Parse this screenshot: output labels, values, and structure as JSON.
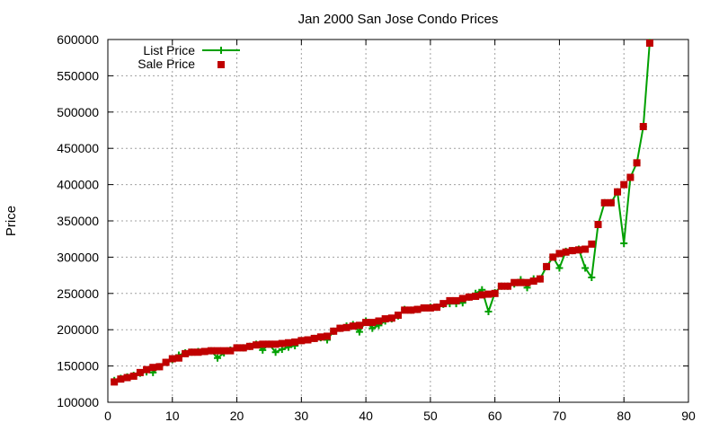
{
  "chart_data": {
    "type": "line",
    "title": "Jan 2000 San Jose Condo Prices",
    "xlabel": "",
    "ylabel": "Price",
    "xlim": [
      0,
      90
    ],
    "ylim": [
      100000,
      600000
    ],
    "xticks": [
      0,
      10,
      20,
      30,
      40,
      50,
      60,
      70,
      80,
      90
    ],
    "yticks": [
      100000,
      150000,
      200000,
      250000,
      300000,
      350000,
      400000,
      450000,
      500000,
      550000,
      600000
    ],
    "grid": true,
    "legend_position": "top-left",
    "series": [
      {
        "name": "List Price",
        "style": "line+plus",
        "color": "#00a000",
        "x": [
          1,
          2,
          3,
          4,
          5,
          6,
          7,
          8,
          9,
          10,
          11,
          12,
          13,
          14,
          15,
          16,
          17,
          18,
          19,
          20,
          21,
          22,
          23,
          24,
          25,
          26,
          27,
          28,
          29,
          30,
          31,
          32,
          33,
          34,
          35,
          36,
          37,
          38,
          39,
          40,
          41,
          42,
          43,
          44,
          45,
          46,
          47,
          48,
          49,
          50,
          51,
          52,
          53,
          54,
          55,
          56,
          57,
          58,
          59,
          60,
          61,
          62,
          63,
          64,
          65,
          66,
          67,
          68,
          69,
          70,
          71,
          72,
          73,
          74,
          75,
          76,
          77,
          78,
          79,
          80,
          81,
          82,
          83,
          84
        ],
        "values": [
          130000,
          133000,
          135000,
          137000,
          140000,
          142000,
          141000,
          149000,
          155000,
          159000,
          165000,
          168000,
          169000,
          170000,
          170000,
          171000,
          161000,
          168000,
          172000,
          175000,
          175000,
          177000,
          180000,
          172000,
          180000,
          169000,
          173000,
          176000,
          178000,
          185000,
          186000,
          188000,
          189000,
          186000,
          198000,
          202000,
          205000,
          207000,
          197000,
          212000,
          202000,
          206000,
          212000,
          215000,
          219000,
          228000,
          227000,
          228000,
          230000,
          231000,
          231000,
          235000,
          236000,
          236000,
          237000,
          245000,
          250000,
          255000,
          225000,
          251000,
          260000,
          260000,
          263000,
          269000,
          258000,
          270000,
          270000,
          287000,
          300000,
          285000,
          308000,
          309000,
          311000,
          285000,
          272000,
          345000,
          375000,
          375000,
          390000,
          319000,
          410000,
          430000,
          480000,
          596000
        ]
      },
      {
        "name": "Sale Price",
        "style": "squares",
        "color": "#c00000",
        "x": [
          1,
          2,
          3,
          4,
          5,
          6,
          7,
          8,
          9,
          10,
          11,
          12,
          13,
          14,
          15,
          16,
          17,
          18,
          19,
          20,
          21,
          22,
          23,
          24,
          25,
          26,
          27,
          28,
          29,
          30,
          31,
          32,
          33,
          34,
          35,
          36,
          37,
          38,
          39,
          40,
          41,
          42,
          43,
          44,
          45,
          46,
          47,
          48,
          49,
          50,
          51,
          52,
          53,
          54,
          55,
          56,
          57,
          58,
          59,
          60,
          61,
          62,
          63,
          64,
          65,
          66,
          67,
          68,
          69,
          70,
          71,
          72,
          73,
          74,
          75,
          76,
          77,
          78,
          79,
          80,
          81,
          82,
          83,
          84
        ],
        "values": [
          128000,
          132000,
          134000,
          136000,
          141000,
          145000,
          148000,
          149000,
          155000,
          160000,
          161000,
          167000,
          169000,
          169000,
          170000,
          171000,
          171000,
          171000,
          171000,
          175000,
          175000,
          177000,
          179000,
          180000,
          180000,
          180000,
          181000,
          182000,
          183000,
          185000,
          186000,
          188000,
          190000,
          191000,
          198000,
          202000,
          203000,
          205000,
          206000,
          210000,
          210000,
          212000,
          215000,
          216000,
          220000,
          227000,
          227000,
          228000,
          230000,
          230000,
          231000,
          236000,
          240000,
          240000,
          243000,
          245000,
          246000,
          248000,
          249000,
          250000,
          260000,
          260000,
          265000,
          265000,
          265000,
          267000,
          270000,
          287000,
          300000,
          305000,
          307000,
          309000,
          310000,
          311000,
          318000,
          345000,
          375000,
          375000,
          390000,
          400000,
          410000,
          430000,
          480000,
          595000
        ]
      }
    ]
  }
}
